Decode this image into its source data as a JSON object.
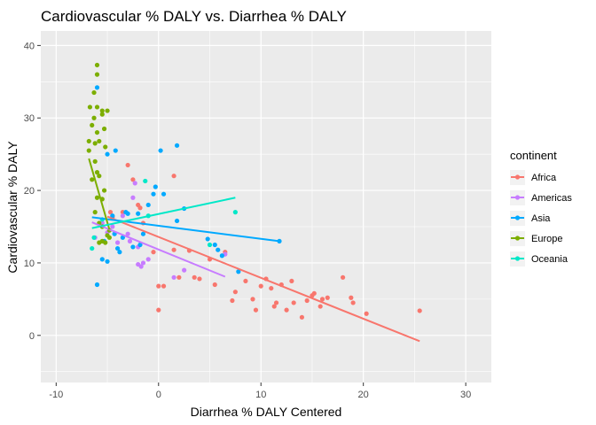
{
  "chart_data": {
    "type": "scatter",
    "title": "Cardiovascular % DALY vs. Diarrhea % DALY",
    "xlabel": "Diarrhea % DALY Centered",
    "ylabel": "Cardiovascular % DALY",
    "xlim": [
      -11.5,
      32.5
    ],
    "ylim": [
      -6.5,
      42
    ],
    "x_ticks": [
      -10,
      0,
      10,
      20,
      30
    ],
    "y_ticks": [
      0,
      10,
      20,
      30,
      40
    ],
    "grid": true,
    "legend": {
      "title": "continent",
      "placement": "right"
    },
    "series": [
      {
        "name": "Africa",
        "color": "#F8766D",
        "points": [
          [
            -4.7,
            17.0
          ],
          [
            -4.5,
            16.3
          ],
          [
            -3.5,
            17.0
          ],
          [
            -3.0,
            23.5
          ],
          [
            -2.5,
            21.5
          ],
          [
            -2.0,
            18.0
          ],
          [
            -1.8,
            17.6
          ],
          [
            -1.5,
            15.5
          ],
          [
            -0.5,
            11.5
          ],
          [
            0.0,
            6.8
          ],
          [
            0.5,
            6.8
          ],
          [
            0.0,
            3.5
          ],
          [
            1.5,
            22.0
          ],
          [
            1.5,
            11.8
          ],
          [
            2.0,
            8.0
          ],
          [
            3.0,
            11.7
          ],
          [
            3.5,
            8.0
          ],
          [
            4.0,
            7.8
          ],
          [
            5.0,
            10.5
          ],
          [
            5.5,
            7.0
          ],
          [
            6.5,
            11.5
          ],
          [
            7.2,
            4.8
          ],
          [
            7.5,
            6.0
          ],
          [
            8.5,
            7.5
          ],
          [
            9.2,
            5.0
          ],
          [
            9.5,
            3.5
          ],
          [
            10.0,
            6.8
          ],
          [
            10.5,
            7.8
          ],
          [
            11.0,
            6.5
          ],
          [
            11.3,
            4.0
          ],
          [
            11.5,
            4.5
          ],
          [
            12.0,
            7.0
          ],
          [
            12.5,
            3.5
          ],
          [
            13.0,
            7.5
          ],
          [
            13.2,
            4.5
          ],
          [
            14.0,
            2.5
          ],
          [
            14.5,
            4.8
          ],
          [
            15.0,
            5.5
          ],
          [
            15.2,
            5.8
          ],
          [
            15.8,
            4.0
          ],
          [
            16.0,
            5.0
          ],
          [
            16.5,
            5.2
          ],
          [
            18.0,
            8.0
          ],
          [
            18.8,
            5.2
          ],
          [
            19.0,
            4.5
          ],
          [
            20.3,
            3.0
          ],
          [
            25.5,
            3.4
          ]
        ],
        "fit": [
          [
            -5.0,
            16.4
          ],
          [
            25.5,
            -0.8
          ]
        ]
      },
      {
        "name": "Americas",
        "color": "#C77CFF",
        "points": [
          [
            -6.2,
            13.5
          ],
          [
            -5.5,
            15.5
          ],
          [
            -5.0,
            14.2
          ],
          [
            -4.5,
            15.0
          ],
          [
            -4.0,
            12.8
          ],
          [
            -3.5,
            16.5
          ],
          [
            -3.0,
            14.0
          ],
          [
            -2.8,
            13.0
          ],
          [
            -2.5,
            19.0
          ],
          [
            -2.3,
            21.0
          ],
          [
            -2.0,
            12.2
          ],
          [
            -2.0,
            9.8
          ],
          [
            -1.7,
            9.5
          ],
          [
            -1.5,
            10.0
          ],
          [
            -1.0,
            10.5
          ],
          [
            1.5,
            8.0
          ],
          [
            2.5,
            9.0
          ],
          [
            6.5,
            11.2
          ]
        ],
        "fit": [
          [
            -6.5,
            15.6
          ],
          [
            6.5,
            8.1
          ]
        ]
      },
      {
        "name": "Asia",
        "color": "#00A9FF",
        "points": [
          [
            -6.0,
            34.2
          ],
          [
            -6.0,
            7.0
          ],
          [
            -5.5,
            10.5
          ],
          [
            -5.3,
            13.0
          ],
          [
            -5.0,
            25.0
          ],
          [
            -5.0,
            10.2
          ],
          [
            -4.5,
            16.5
          ],
          [
            -4.3,
            14.0
          ],
          [
            -4.2,
            25.5
          ],
          [
            -4.0,
            12.0
          ],
          [
            -3.8,
            11.5
          ],
          [
            -3.5,
            13.5
          ],
          [
            -3.2,
            17.0
          ],
          [
            -3.0,
            16.8
          ],
          [
            -2.5,
            12.2
          ],
          [
            -2.0,
            16.8
          ],
          [
            -1.8,
            12.5
          ],
          [
            -1.5,
            14.0
          ],
          [
            -1.0,
            18.0
          ],
          [
            -0.5,
            19.5
          ],
          [
            -0.3,
            20.5
          ],
          [
            0.2,
            25.5
          ],
          [
            0.5,
            19.5
          ],
          [
            1.8,
            26.2
          ],
          [
            1.8,
            15.8
          ],
          [
            2.5,
            17.5
          ],
          [
            4.8,
            13.3
          ],
          [
            5.5,
            12.5
          ],
          [
            5.8,
            11.8
          ],
          [
            6.2,
            11.0
          ],
          [
            7.8,
            8.8
          ],
          [
            11.8,
            13.0
          ]
        ],
        "fit": [
          [
            -6.5,
            16.3
          ],
          [
            11.8,
            13.0
          ]
        ]
      },
      {
        "name": "Europe",
        "color": "#7CAE00",
        "points": [
          [
            -6.8,
            26.8
          ],
          [
            -6.8,
            25.5
          ],
          [
            -6.7,
            31.5
          ],
          [
            -6.5,
            29.0
          ],
          [
            -6.5,
            21.5
          ],
          [
            -6.3,
            33.5
          ],
          [
            -6.3,
            30.0
          ],
          [
            -6.2,
            26.5
          ],
          [
            -6.2,
            24.0
          ],
          [
            -6.2,
            17.0
          ],
          [
            -6.0,
            37.3
          ],
          [
            -6.0,
            36.0
          ],
          [
            -6.0,
            31.5
          ],
          [
            -6.0,
            28.0
          ],
          [
            -6.0,
            22.5
          ],
          [
            -6.0,
            19.0
          ],
          [
            -5.8,
            26.8
          ],
          [
            -5.8,
            22.0
          ],
          [
            -5.8,
            15.5
          ],
          [
            -5.8,
            12.8
          ],
          [
            -5.5,
            31.0
          ],
          [
            -5.5,
            30.5
          ],
          [
            -5.5,
            18.8
          ],
          [
            -5.5,
            15.0
          ],
          [
            -5.5,
            13.0
          ],
          [
            -5.3,
            28.5
          ],
          [
            -5.3,
            20.0
          ],
          [
            -5.2,
            26.0
          ],
          [
            -5.2,
            12.8
          ],
          [
            -5.0,
            31.0
          ],
          [
            -5.0,
            13.8
          ],
          [
            -4.8,
            14.5
          ],
          [
            -4.8,
            13.5
          ]
        ],
        "fit": [
          [
            -6.8,
            24.4
          ],
          [
            -4.8,
            14.6
          ]
        ]
      },
      {
        "name": "Oceania",
        "color": "#00E8C8",
        "points": [
          [
            -6.5,
            12.0
          ],
          [
            -6.3,
            13.5
          ],
          [
            -5.5,
            16.0
          ],
          [
            -1.3,
            21.3
          ],
          [
            -1.0,
            16.5
          ],
          [
            5.0,
            12.5
          ],
          [
            7.5,
            17.0
          ]
        ],
        "fit": [
          [
            -6.5,
            14.8
          ],
          [
            7.5,
            19.0
          ]
        ]
      }
    ]
  }
}
